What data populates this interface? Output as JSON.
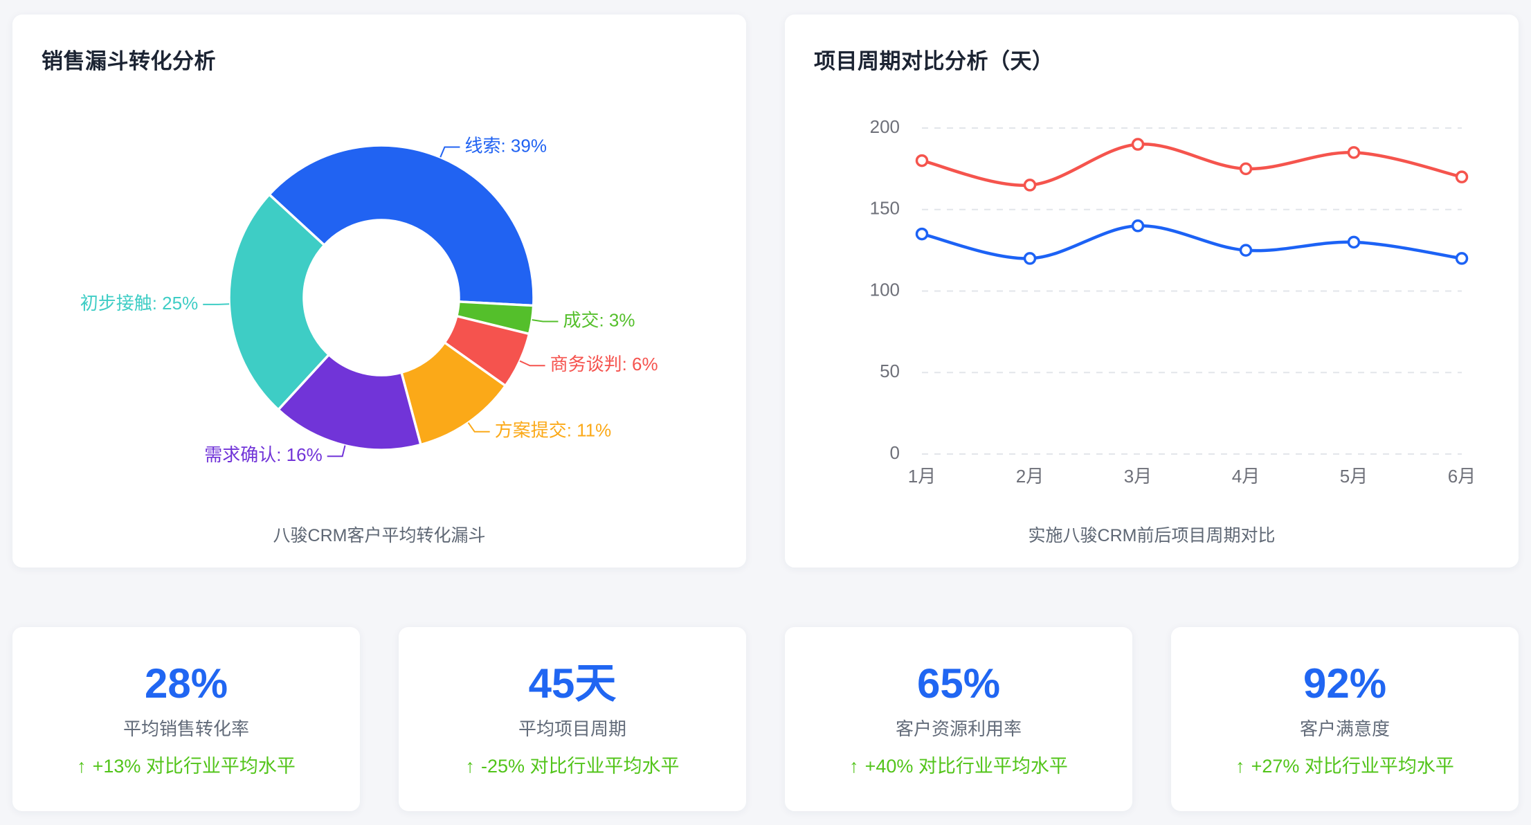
{
  "colors": {
    "page_background": "#f5f6f9",
    "card_background": "#ffffff",
    "title_text": "#1c2433",
    "caption_text": "#5e6774",
    "axis_text": "#6e7079",
    "gridline": "#e2e5ea",
    "stat_value_blue": "#2066f2",
    "trend_green": "#52c41a"
  },
  "chart_data": [
    {
      "id": "sales-funnel-donut",
      "type": "pie",
      "title": "销售漏斗转化分析",
      "caption": "八骏CRM客户平均转化漏斗",
      "unit": "%",
      "start_angle": 137.4,
      "direction": "clockwise",
      "inner_radius_ratio": 0.51,
      "slices": [
        {
          "name": "线索",
          "value": 39,
          "color": "#2163f2"
        },
        {
          "name": "成交",
          "value": 3,
          "color": "#54bf2b"
        },
        {
          "name": "商务谈判",
          "value": 6,
          "color": "#f5534e"
        },
        {
          "name": "方案提交",
          "value": 11,
          "color": "#fba918"
        },
        {
          "name": "需求确认",
          "value": 16,
          "color": "#7134d8"
        },
        {
          "name": "初步接触",
          "value": 25,
          "color": "#3ecdc5"
        }
      ]
    },
    {
      "id": "project-cycle-lines",
      "type": "line",
      "title": "项目周期对比分析（天）",
      "caption": "实施八骏CRM前后项目周期对比",
      "x": [
        "1月",
        "2月",
        "3月",
        "4月",
        "5月",
        "6月"
      ],
      "ylim": [
        0,
        200
      ],
      "yticks": [
        0,
        50,
        100,
        150,
        200
      ],
      "grid": "dashed-horizontal",
      "smooth": true,
      "legend": "none",
      "series": [
        {
          "color": "#f5544d",
          "values": [
            180,
            165,
            190,
            175,
            185,
            170
          ]
        },
        {
          "color": "#1c62f5",
          "values": [
            135,
            120,
            140,
            125,
            130,
            120
          ]
        }
      ]
    }
  ],
  "stats": [
    {
      "value": "28%",
      "label": "平均销售转化率",
      "arrow": "↑",
      "trend": "+13% 对比行业平均水平"
    },
    {
      "value": "45天",
      "label": "平均项目周期",
      "arrow": "↑",
      "trend": "-25% 对比行业平均水平"
    },
    {
      "value": "65%",
      "label": "客户资源利用率",
      "arrow": "↑",
      "trend": "+40% 对比行业平均水平"
    },
    {
      "value": "92%",
      "label": "客户满意度",
      "arrow": "↑",
      "trend": "+27% 对比行业平均水平"
    }
  ]
}
